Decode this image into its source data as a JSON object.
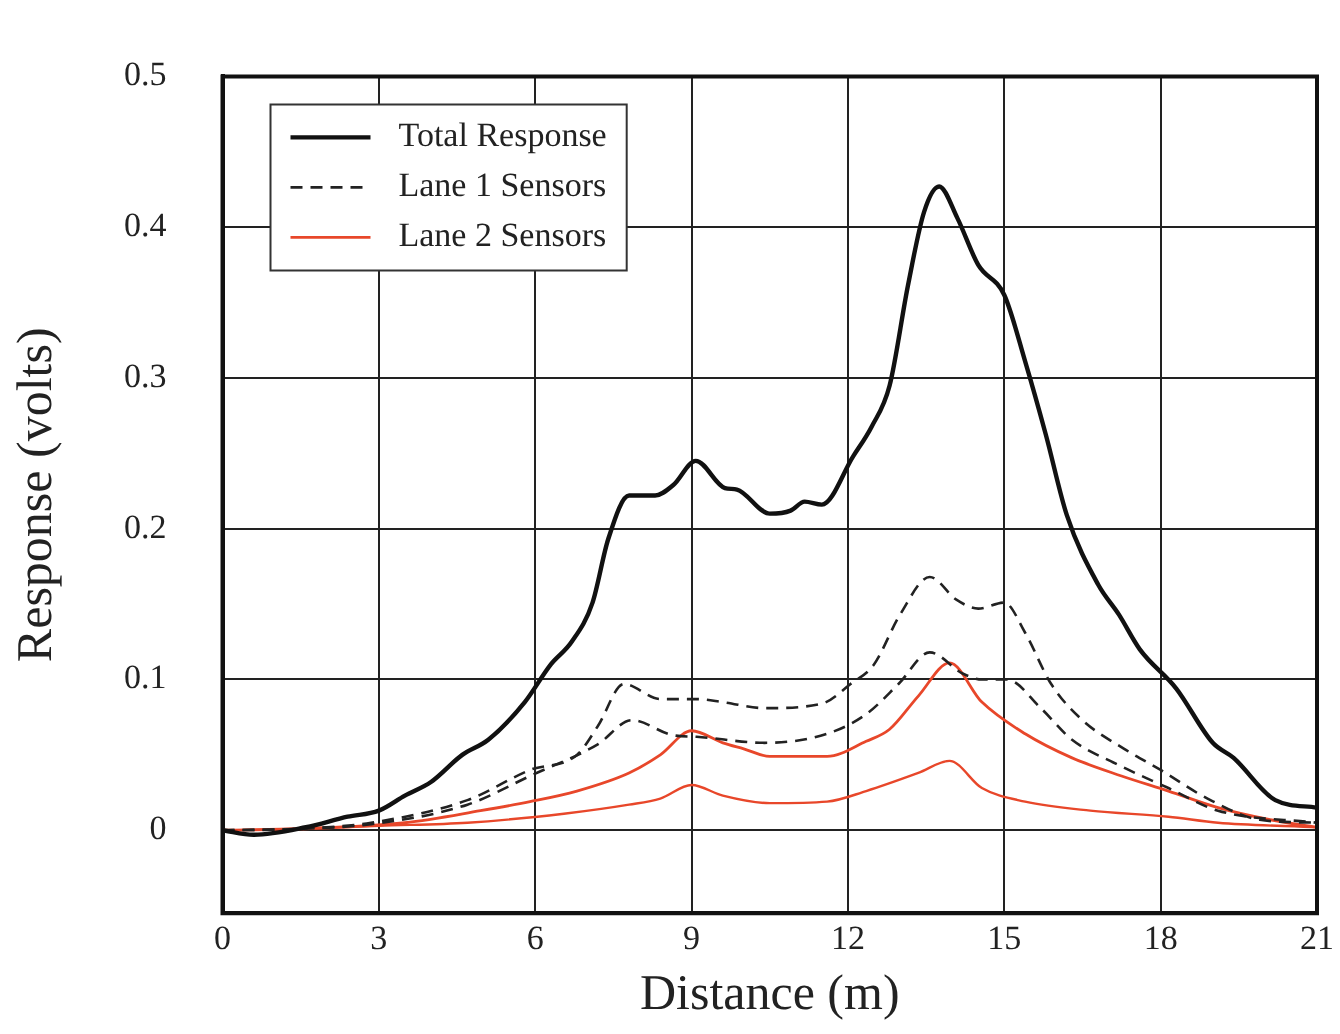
{
  "chart_data": {
    "type": "line",
    "xlabel": "Distance (m)",
    "ylabel": "Response (volts)",
    "xlim": [
      0,
      21
    ],
    "ylim": [
      -0.055,
      0.5
    ],
    "xticks": [
      0,
      3,
      6,
      9,
      12,
      15,
      18,
      21
    ],
    "yticks": [
      0,
      0.1,
      0.2,
      0.3,
      0.4,
      0.5
    ],
    "grid": true,
    "legend": "top left",
    "marker": "none",
    "line_style": "solid",
    "series": [
      {
        "name": "Total Response",
        "color": "#111111",
        "x": [
          0,
          0.6,
          1.6,
          2.4,
          3.0,
          3.5,
          4.0,
          4.6,
          5.1,
          5.8,
          6.3,
          6.7,
          7.1,
          7.4,
          7.8,
          8.3,
          8.65,
          9.08,
          9.64,
          9.87,
          10.5,
          10.9,
          11.17,
          11.5,
          12.1,
          12.46,
          12.8,
          13.15,
          13.46,
          13.75,
          14.1,
          14.5,
          15.0,
          15.4,
          15.8,
          16.2,
          16.8,
          17.2,
          17.6,
          18.3,
          19.0,
          19.4,
          20.2,
          21
        ],
        "values": [
          0,
          -0.003,
          0.002,
          0.009,
          0.013,
          0.023,
          0.032,
          0.05,
          0.06,
          0.085,
          0.11,
          0.125,
          0.151,
          0.193,
          0.222,
          0.222,
          0.229,
          0.245,
          0.227,
          0.226,
          0.21,
          0.212,
          0.218,
          0.216,
          0.248,
          0.268,
          0.295,
          0.361,
          0.41,
          0.427,
          0.406,
          0.375,
          0.355,
          0.311,
          0.262,
          0.209,
          0.163,
          0.143,
          0.12,
          0.094,
          0.058,
          0.048,
          0.02,
          0.015
        ]
      },
      {
        "name": "Lane 1 Sensors",
        "color": "#222222",
        "line_style": "dashed",
        "x": [
          0,
          1.5,
          2.85,
          4.7,
          5.9,
          6.8,
          7.2,
          7.7,
          8.4,
          9.1,
          9.6,
          10.4,
          11.5,
          12.05,
          12.5,
          13.0,
          13.57,
          14.08,
          14.5,
          15.0,
          15.4,
          15.9,
          16.5,
          17.3,
          18.0,
          18.9,
          19.9,
          21
        ],
        "values": [
          0,
          0.001,
          0.005,
          0.02,
          0.04,
          0.05,
          0.069,
          0.097,
          0.087,
          0.087,
          0.085,
          0.081,
          0.084,
          0.097,
          0.11,
          0.143,
          0.168,
          0.153,
          0.147,
          0.151,
          0.131,
          0.097,
          0.073,
          0.054,
          0.04,
          0.021,
          0.007,
          0.005
        ]
      },
      {
        "color": "#222222",
        "line_style": "dashed",
        "x": [
          0,
          1.5,
          2.85,
          4.7,
          5.9,
          7.2,
          7.85,
          8.65,
          9.1,
          10.4,
          11.6,
          12.35,
          12.97,
          13.57,
          14.2,
          14.57,
          15.05,
          15.7,
          16.3,
          17.15,
          18.15,
          19.1,
          21
        ],
        "values": [
          0,
          0.001,
          0.004,
          0.017,
          0.036,
          0.057,
          0.073,
          0.063,
          0.062,
          0.058,
          0.064,
          0.077,
          0.097,
          0.118,
          0.104,
          0.1,
          0.1,
          0.081,
          0.06,
          0.044,
          0.028,
          0.013,
          0.005
        ]
      },
      {
        "name": "Lane 2 Sensors",
        "color": "#e8472a",
        "x": [
          0,
          1.5,
          3.5,
          4.95,
          5.9,
          6.8,
          7.8,
          8.4,
          9.0,
          9.6,
          10.0,
          10.5,
          11.6,
          12.35,
          12.8,
          13.35,
          13.95,
          14.57,
          15.4,
          16.3,
          17.25,
          18.15,
          19.1,
          20.1,
          21
        ],
        "values": [
          0,
          0.001,
          0.005,
          0.013,
          0.019,
          0.026,
          0.038,
          0.05,
          0.066,
          0.058,
          0.054,
          0.049,
          0.049,
          0.059,
          0.067,
          0.089,
          0.111,
          0.085,
          0.064,
          0.048,
          0.036,
          0.026,
          0.015,
          0.007,
          0.002
        ]
      },
      {
        "color": "#e8472a",
        "x": [
          0,
          1.5,
          3.0,
          4.7,
          6.55,
          7.8,
          8.4,
          9.0,
          9.6,
          10.5,
          11.6,
          12.35,
          13.35,
          13.95,
          14.57,
          15.4,
          16.65,
          18.15,
          19.1,
          21
        ],
        "values": [
          0,
          0.001,
          0.003,
          0.005,
          0.011,
          0.017,
          0.021,
          0.03,
          0.023,
          0.018,
          0.019,
          0.026,
          0.038,
          0.046,
          0.028,
          0.019,
          0.013,
          0.009,
          0.005,
          0.002
        ]
      }
    ]
  }
}
